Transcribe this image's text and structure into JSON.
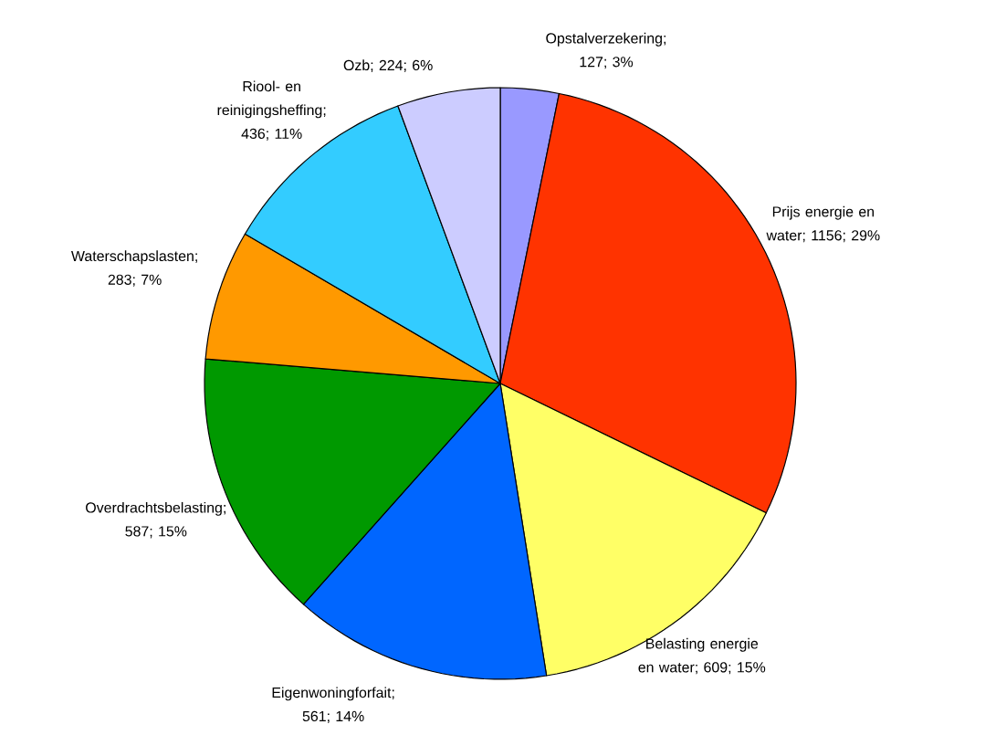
{
  "chart_data": {
    "type": "pie",
    "categories": [
      "Opstalverzekering",
      "Prijs energie en water",
      "Belasting energie en water",
      "Eigenwoningforfait",
      "Overdrachtsbelasting",
      "Waterschapslasten",
      "Riool- en reinigingsheffing",
      "Ozb"
    ],
    "values": [
      127,
      1156,
      609,
      561,
      587,
      283,
      436,
      224
    ],
    "value_labels": [
      "; 127; 3%",
      "; 1156; 29%",
      "; 609; 15%",
      "; 561; 14%",
      "; 587; 15%",
      "; 283; 7%",
      "; 436; 11%",
      "; 224; 6%"
    ],
    "colors": [
      "#9999ff",
      "#ff3300",
      "#ffff66",
      "#0066ff",
      "#009900",
      "#ff9900",
      "#33ccff",
      "#ccccff"
    ]
  }
}
